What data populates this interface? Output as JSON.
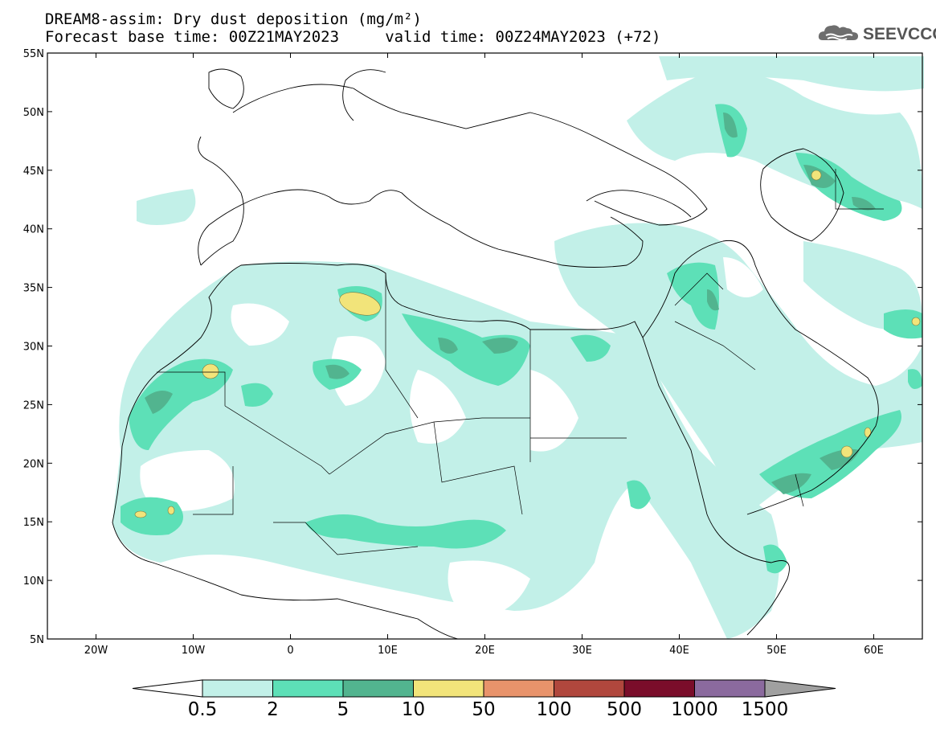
{
  "header": {
    "title_line1": "DREAM8-assim: Dry dust deposition (mg/m²)",
    "title_line2": "Forecast base time: 00Z21MAY2023     valid time: 00Z24MAY2023 (+72)",
    "logo_text": "SEEVCCC",
    "logo_icon": "cloud-logo-icon"
  },
  "map": {
    "lon_range": [
      -25,
      65
    ],
    "lat_range": [
      5,
      55
    ],
    "lat_labels": [
      {
        "lat": 55,
        "text": "55N"
      },
      {
        "lat": 50,
        "text": "50N"
      },
      {
        "lat": 45,
        "text": "45N"
      },
      {
        "lat": 40,
        "text": "40N"
      },
      {
        "lat": 35,
        "text": "35N"
      },
      {
        "lat": 30,
        "text": "30N"
      },
      {
        "lat": 25,
        "text": "25N"
      },
      {
        "lat": 20,
        "text": "20N"
      },
      {
        "lat": 15,
        "text": "15N"
      },
      {
        "lat": 10,
        "text": "10N"
      },
      {
        "lat": 5,
        "text": "5N"
      }
    ],
    "lon_labels": [
      {
        "lon": -20,
        "text": "20W"
      },
      {
        "lon": -10,
        "text": "10W"
      },
      {
        "lon": 0,
        "text": "0"
      },
      {
        "lon": 10,
        "text": "10E"
      },
      {
        "lon": 20,
        "text": "20E"
      },
      {
        "lon": 30,
        "text": "30E"
      },
      {
        "lon": 40,
        "text": "40E"
      },
      {
        "lon": 50,
        "text": "50E"
      },
      {
        "lon": 60,
        "text": "60E"
      }
    ]
  },
  "colorbar": {
    "labels": [
      "0.5",
      "2",
      "5",
      "10",
      "50",
      "100",
      "500",
      "1000",
      "1500"
    ],
    "colors": [
      "#c2f0e8",
      "#5de0b7",
      "#52b48f",
      "#f2e47a",
      "#e8936b",
      "#b0473d",
      "#7a0d2a",
      "#8b6a9e"
    ],
    "under_color": "#ffffff",
    "over_color": "#a0a0a0"
  }
}
